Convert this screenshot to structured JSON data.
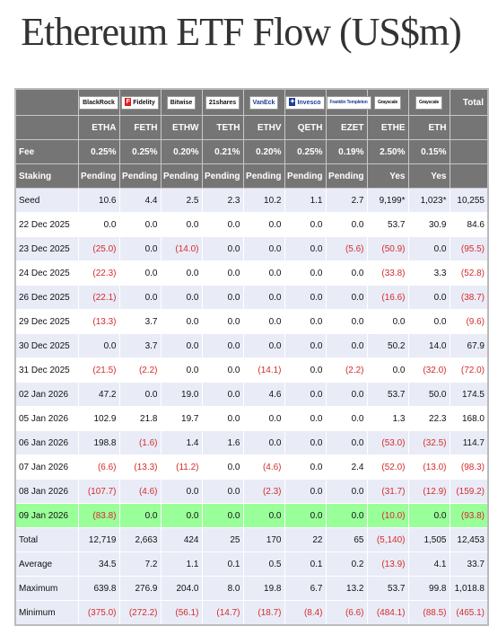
{
  "title": "Ethereum ETF Flow (US$m)",
  "issuers": [
    "BlackRock",
    "Fidelity",
    "Bitwise",
    "21shares",
    "VanEck",
    "Invesco",
    "Franklin Templeton",
    "Grayscale",
    "Grayscale"
  ],
  "total_header": "Total",
  "tickers": [
    "ETHA",
    "FETH",
    "ETHW",
    "TETH",
    "ETHV",
    "QETH",
    "EZET",
    "ETHE",
    "ETH"
  ],
  "fee_label": "Fee",
  "fees": [
    "0.25%",
    "0.25%",
    "0.20%",
    "0.21%",
    "0.20%",
    "0.25%",
    "0.19%",
    "2.50%",
    "0.15%"
  ],
  "staking_label": "Staking",
  "staking": [
    "Pending",
    "Pending",
    "Pending",
    "Pending",
    "Pending",
    "Pending",
    "Pending",
    "Yes",
    "Yes"
  ],
  "rows": [
    {
      "label": "Seed",
      "values": [
        "10.6",
        "4.4",
        "2.5",
        "2.3",
        "10.2",
        "1.1",
        "2.7",
        "9,199*",
        "1,023*",
        "10,255"
      ]
    },
    {
      "label": "22 Dec 2025",
      "values": [
        "0.0",
        "0.0",
        "0.0",
        "0.0",
        "0.0",
        "0.0",
        "0.0",
        "53.7",
        "30.9",
        "84.6"
      ]
    },
    {
      "label": "23 Dec 2025",
      "values": [
        "(25.0)",
        "0.0",
        "(14.0)",
        "0.0",
        "0.0",
        "0.0",
        "(5.6)",
        "(50.9)",
        "0.0",
        "(95.5)"
      ]
    },
    {
      "label": "24 Dec 2025",
      "values": [
        "(22.3)",
        "0.0",
        "0.0",
        "0.0",
        "0.0",
        "0.0",
        "0.0",
        "(33.8)",
        "3.3",
        "(52.8)"
      ]
    },
    {
      "label": "26 Dec 2025",
      "values": [
        "(22.1)",
        "0.0",
        "0.0",
        "0.0",
        "0.0",
        "0.0",
        "0.0",
        "(16.6)",
        "0.0",
        "(38.7)"
      ]
    },
    {
      "label": "29 Dec 2025",
      "values": [
        "(13.3)",
        "3.7",
        "0.0",
        "0.0",
        "0.0",
        "0.0",
        "0.0",
        "0.0",
        "0.0",
        "(9.6)"
      ]
    },
    {
      "label": "30 Dec 2025",
      "values": [
        "0.0",
        "3.7",
        "0.0",
        "0.0",
        "0.0",
        "0.0",
        "0.0",
        "50.2",
        "14.0",
        "67.9"
      ]
    },
    {
      "label": "31 Dec 2025",
      "values": [
        "(21.5)",
        "(2.2)",
        "0.0",
        "0.0",
        "(14.1)",
        "0.0",
        "(2.2)",
        "0.0",
        "(32.0)",
        "(72.0)"
      ]
    },
    {
      "label": "02 Jan 2026",
      "values": [
        "47.2",
        "0.0",
        "19.0",
        "0.0",
        "4.6",
        "0.0",
        "0.0",
        "53.7",
        "50.0",
        "174.5"
      ]
    },
    {
      "label": "05 Jan 2026",
      "values": [
        "102.9",
        "21.8",
        "19.7",
        "0.0",
        "0.0",
        "0.0",
        "0.0",
        "1.3",
        "22.3",
        "168.0"
      ]
    },
    {
      "label": "06 Jan 2026",
      "values": [
        "198.8",
        "(1.6)",
        "1.4",
        "1.6",
        "0.0",
        "0.0",
        "0.0",
        "(53.0)",
        "(32.5)",
        "114.7"
      ]
    },
    {
      "label": "07 Jan 2026",
      "values": [
        "(6.6)",
        "(13.3)",
        "(11.2)",
        "0.0",
        "(4.6)",
        "0.0",
        "2.4",
        "(52.0)",
        "(13.0)",
        "(98.3)"
      ]
    },
    {
      "label": "08 Jan 2026",
      "values": [
        "(107.7)",
        "(4.6)",
        "0.0",
        "0.0",
        "(2.3)",
        "0.0",
        "0.0",
        "(31.7)",
        "(12.9)",
        "(159.2)"
      ]
    },
    {
      "label": "09 Jan 2026",
      "values": [
        "(83.8)",
        "0.0",
        "0.0",
        "0.0",
        "0.0",
        "0.0",
        "0.0",
        "(10.0)",
        "0.0",
        "(93.8)"
      ]
    },
    {
      "label": "Total",
      "values": [
        "12,719",
        "2,663",
        "424",
        "25",
        "170",
        "22",
        "65",
        "(5,140)",
        "1,505",
        "12,453"
      ]
    },
    {
      "label": "Average",
      "values": [
        "34.5",
        "7.2",
        "1.1",
        "0.1",
        "0.5",
        "0.1",
        "0.2",
        "(13.9)",
        "4.1",
        "33.7"
      ]
    },
    {
      "label": "Maximum",
      "values": [
        "639.8",
        "276.9",
        "204.0",
        "8.0",
        "19.8",
        "6.7",
        "13.2",
        "53.7",
        "99.8",
        "1,018.8"
      ]
    },
    {
      "label": "Minimum",
      "values": [
        "(375.0)",
        "(272.2)",
        "(56.1)",
        "(14.7)",
        "(18.7)",
        "(8.4)",
        "(6.6)",
        "(484.1)",
        "(88.5)",
        "(465.1)"
      ]
    }
  ],
  "colors": {
    "header_bg": "#757575",
    "row_stripe": "#e9ecf7",
    "highlight_row": "#99ff99",
    "negative_text": "#d62b2b"
  }
}
